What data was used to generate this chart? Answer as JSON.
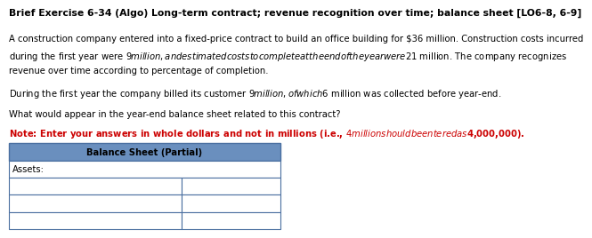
{
  "title": "Brief Exercise 6-34 (Algo) Long-term contract; revenue recognition over time; balance sheet [LO6-8, 6-9]",
  "paragraph1_line1": "A construction company entered into a fixed-price contract to build an office building for $36 million. Construction costs incurred",
  "paragraph1_line2": "during the first year were $9 million, and estimated costs to complete at the end of the year were $21 million. The company recognizes",
  "paragraph1_line3": "revenue over time according to percentage of completion.",
  "paragraph2": "During the first year the company billed its customer $9 million, of which $6 million was collected before year-end.",
  "paragraph3": "What would appear in the year-end balance sheet related to this contract?",
  "note": "Note: Enter your answers in whole dollars and not in millions (i.e., $4 million should be entered as $4,000,000).",
  "table_header": "Balance Sheet (Partial)",
  "table_row0": "Assets:",
  "bg_color": "#ffffff",
  "title_fontsize": 7.8,
  "body_fontsize": 7.2,
  "note_color": "#cc0000",
  "table_header_bg": "#6a8fbe",
  "table_border_color": "#4a6fa0",
  "num_data_rows": 3
}
